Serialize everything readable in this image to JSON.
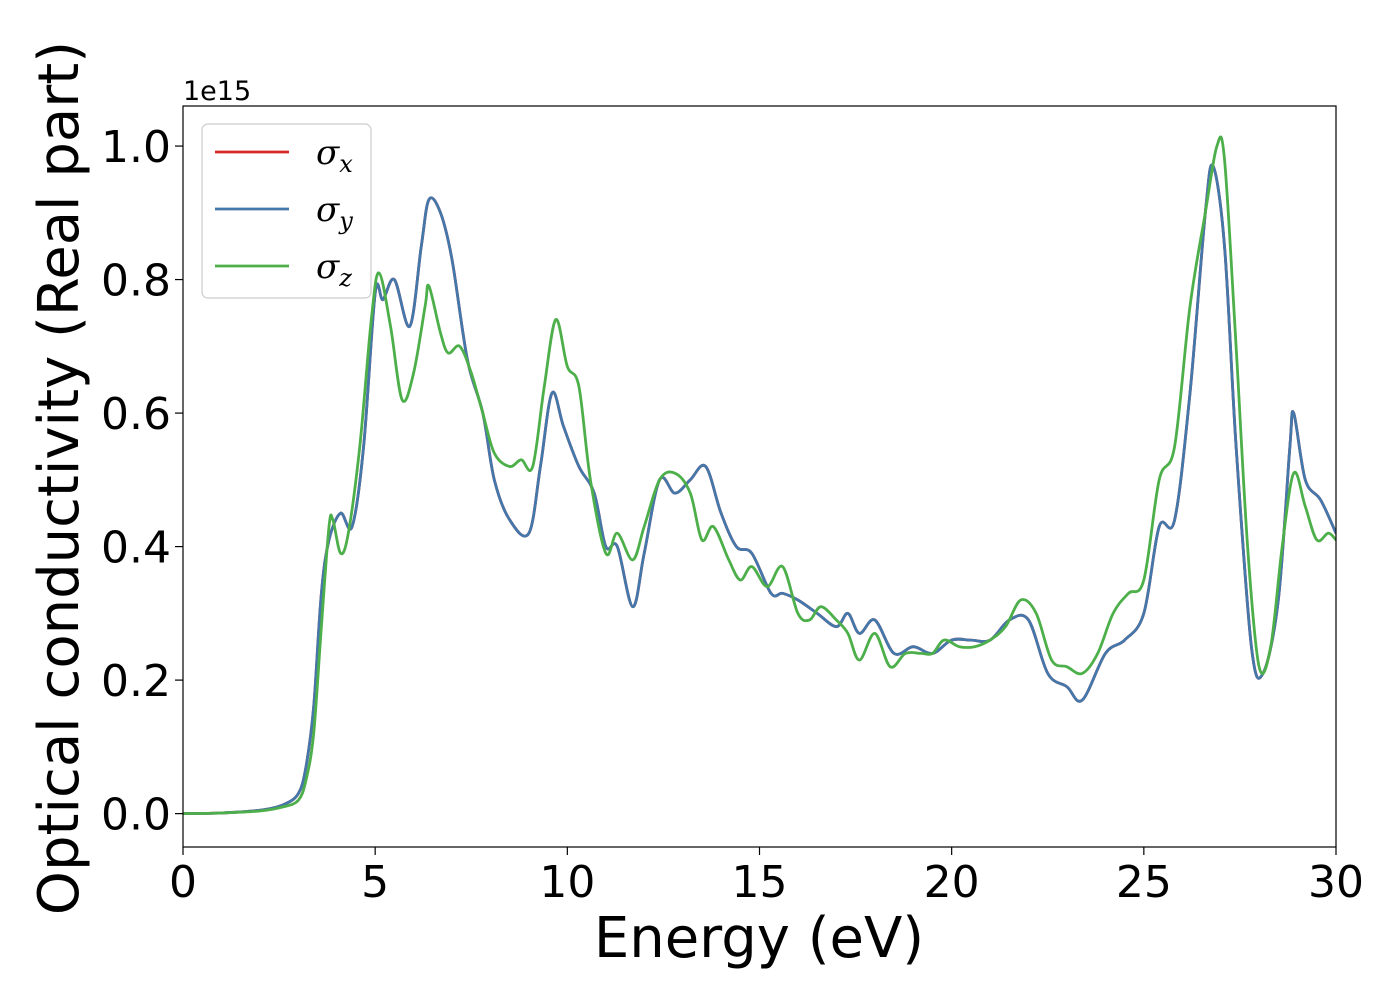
{
  "chart_data": {
    "type": "line",
    "title": "",
    "xlabel": "Energy (eV)",
    "ylabel": "Optical conductivity (Real part)",
    "y_offset_text": "1e15",
    "xlim": [
      0,
      30
    ],
    "ylim": [
      -0.05,
      1.06
    ],
    "x_ticks": [
      "0",
      "5",
      "10",
      "15",
      "20",
      "25",
      "30"
    ],
    "y_ticks": [
      "0.0",
      "0.2",
      "0.4",
      "0.6",
      "0.8",
      "1.0"
    ],
    "grid": false,
    "legend_position": "upper-left",
    "series": [
      {
        "name": "σx",
        "symbol": "σ",
        "subscript": "x",
        "color": "#d62728",
        "points": [
          [
            0,
            0
          ],
          [
            1,
            0.001
          ],
          [
            2,
            0.005
          ],
          [
            2.6,
            0.013
          ],
          [
            3,
            0.03
          ],
          [
            3.2,
            0.07
          ],
          [
            3.4,
            0.16
          ],
          [
            3.6,
            0.33
          ],
          [
            3.8,
            0.41
          ],
          [
            4.1,
            0.45
          ],
          [
            4.4,
            0.43
          ],
          [
            4.7,
            0.55
          ],
          [
            5.0,
            0.78
          ],
          [
            5.2,
            0.77
          ],
          [
            5.5,
            0.8
          ],
          [
            5.9,
            0.73
          ],
          [
            6.2,
            0.85
          ],
          [
            6.4,
            0.92
          ],
          [
            6.7,
            0.9
          ],
          [
            7.0,
            0.83
          ],
          [
            7.4,
            0.68
          ],
          [
            7.8,
            0.6
          ],
          [
            8.1,
            0.5
          ],
          [
            8.5,
            0.44
          ],
          [
            9.0,
            0.42
          ],
          [
            9.3,
            0.52
          ],
          [
            9.6,
            0.63
          ],
          [
            9.9,
            0.58
          ],
          [
            10.3,
            0.52
          ],
          [
            10.7,
            0.48
          ],
          [
            11.0,
            0.4
          ],
          [
            11.3,
            0.4
          ],
          [
            11.7,
            0.31
          ],
          [
            12.0,
            0.39
          ],
          [
            12.4,
            0.5
          ],
          [
            12.8,
            0.48
          ],
          [
            13.2,
            0.5
          ],
          [
            13.6,
            0.52
          ],
          [
            14.0,
            0.45
          ],
          [
            14.4,
            0.4
          ],
          [
            14.8,
            0.39
          ],
          [
            15.3,
            0.33
          ],
          [
            15.6,
            0.33
          ],
          [
            16.0,
            0.32
          ],
          [
            16.5,
            0.3
          ],
          [
            17.0,
            0.28
          ],
          [
            17.3,
            0.3
          ],
          [
            17.6,
            0.27
          ],
          [
            18.0,
            0.29
          ],
          [
            18.5,
            0.24
          ],
          [
            19.0,
            0.25
          ],
          [
            19.5,
            0.24
          ],
          [
            20.0,
            0.26
          ],
          [
            20.5,
            0.26
          ],
          [
            21.0,
            0.26
          ],
          [
            21.5,
            0.29
          ],
          [
            22.0,
            0.29
          ],
          [
            22.5,
            0.21
          ],
          [
            23.0,
            0.19
          ],
          [
            23.4,
            0.17
          ],
          [
            24.0,
            0.24
          ],
          [
            24.5,
            0.26
          ],
          [
            25.0,
            0.3
          ],
          [
            25.4,
            0.43
          ],
          [
            25.8,
            0.44
          ],
          [
            26.2,
            0.63
          ],
          [
            26.6,
            0.9
          ],
          [
            26.8,
            0.97
          ],
          [
            27.1,
            0.85
          ],
          [
            27.4,
            0.55
          ],
          [
            27.8,
            0.25
          ],
          [
            28.1,
            0.21
          ],
          [
            28.5,
            0.32
          ],
          [
            28.8,
            0.55
          ],
          [
            28.9,
            0.6
          ],
          [
            29.2,
            0.5
          ],
          [
            29.6,
            0.47
          ],
          [
            30.0,
            0.42
          ]
        ]
      },
      {
        "name": "σy",
        "symbol": "σ",
        "subscript": "y",
        "color": "#4477aa",
        "points": [
          [
            0,
            0
          ],
          [
            1,
            0.001
          ],
          [
            2,
            0.005
          ],
          [
            2.6,
            0.013
          ],
          [
            3,
            0.03
          ],
          [
            3.2,
            0.07
          ],
          [
            3.4,
            0.16
          ],
          [
            3.6,
            0.33
          ],
          [
            3.8,
            0.41
          ],
          [
            4.1,
            0.45
          ],
          [
            4.4,
            0.43
          ],
          [
            4.7,
            0.55
          ],
          [
            5.0,
            0.78
          ],
          [
            5.2,
            0.77
          ],
          [
            5.5,
            0.8
          ],
          [
            5.9,
            0.73
          ],
          [
            6.2,
            0.85
          ],
          [
            6.4,
            0.92
          ],
          [
            6.7,
            0.9
          ],
          [
            7.0,
            0.83
          ],
          [
            7.4,
            0.68
          ],
          [
            7.8,
            0.6
          ],
          [
            8.1,
            0.5
          ],
          [
            8.5,
            0.44
          ],
          [
            9.0,
            0.42
          ],
          [
            9.3,
            0.52
          ],
          [
            9.6,
            0.63
          ],
          [
            9.9,
            0.58
          ],
          [
            10.3,
            0.52
          ],
          [
            10.7,
            0.48
          ],
          [
            11.0,
            0.4
          ],
          [
            11.3,
            0.4
          ],
          [
            11.7,
            0.31
          ],
          [
            12.0,
            0.39
          ],
          [
            12.4,
            0.5
          ],
          [
            12.8,
            0.48
          ],
          [
            13.2,
            0.5
          ],
          [
            13.6,
            0.52
          ],
          [
            14.0,
            0.45
          ],
          [
            14.4,
            0.4
          ],
          [
            14.8,
            0.39
          ],
          [
            15.3,
            0.33
          ],
          [
            15.6,
            0.33
          ],
          [
            16.0,
            0.32
          ],
          [
            16.5,
            0.3
          ],
          [
            17.0,
            0.28
          ],
          [
            17.3,
            0.3
          ],
          [
            17.6,
            0.27
          ],
          [
            18.0,
            0.29
          ],
          [
            18.5,
            0.24
          ],
          [
            19.0,
            0.25
          ],
          [
            19.5,
            0.24
          ],
          [
            20.0,
            0.26
          ],
          [
            20.5,
            0.26
          ],
          [
            21.0,
            0.26
          ],
          [
            21.5,
            0.29
          ],
          [
            22.0,
            0.29
          ],
          [
            22.5,
            0.21
          ],
          [
            23.0,
            0.19
          ],
          [
            23.4,
            0.17
          ],
          [
            24.0,
            0.24
          ],
          [
            24.5,
            0.26
          ],
          [
            25.0,
            0.3
          ],
          [
            25.4,
            0.43
          ],
          [
            25.8,
            0.44
          ],
          [
            26.2,
            0.63
          ],
          [
            26.6,
            0.9
          ],
          [
            26.8,
            0.97
          ],
          [
            27.1,
            0.85
          ],
          [
            27.4,
            0.55
          ],
          [
            27.8,
            0.25
          ],
          [
            28.1,
            0.21
          ],
          [
            28.5,
            0.32
          ],
          [
            28.8,
            0.55
          ],
          [
            28.9,
            0.6
          ],
          [
            29.2,
            0.5
          ],
          [
            29.6,
            0.47
          ],
          [
            30.0,
            0.42
          ]
        ]
      },
      {
        "name": "σz",
        "symbol": "σ",
        "subscript": "z",
        "color": "#4daf4a",
        "points": [
          [
            0,
            0
          ],
          [
            1,
            0.001
          ],
          [
            2,
            0.004
          ],
          [
            2.6,
            0.01
          ],
          [
            3,
            0.02
          ],
          [
            3.2,
            0.05
          ],
          [
            3.4,
            0.12
          ],
          [
            3.6,
            0.28
          ],
          [
            3.8,
            0.43
          ],
          [
            3.9,
            0.44
          ],
          [
            4.1,
            0.39
          ],
          [
            4.3,
            0.42
          ],
          [
            4.6,
            0.55
          ],
          [
            4.9,
            0.74
          ],
          [
            5.1,
            0.81
          ],
          [
            5.4,
            0.73
          ],
          [
            5.7,
            0.62
          ],
          [
            6.0,
            0.66
          ],
          [
            6.3,
            0.76
          ],
          [
            6.4,
            0.79
          ],
          [
            6.7,
            0.72
          ],
          [
            6.9,
            0.69
          ],
          [
            7.2,
            0.7
          ],
          [
            7.5,
            0.66
          ],
          [
            7.8,
            0.6
          ],
          [
            8.1,
            0.54
          ],
          [
            8.5,
            0.52
          ],
          [
            8.8,
            0.53
          ],
          [
            9.1,
            0.52
          ],
          [
            9.4,
            0.64
          ],
          [
            9.7,
            0.74
          ],
          [
            10.0,
            0.67
          ],
          [
            10.3,
            0.64
          ],
          [
            10.6,
            0.5
          ],
          [
            11.0,
            0.39
          ],
          [
            11.3,
            0.42
          ],
          [
            11.7,
            0.38
          ],
          [
            12.0,
            0.43
          ],
          [
            12.4,
            0.5
          ],
          [
            12.8,
            0.51
          ],
          [
            13.2,
            0.48
          ],
          [
            13.5,
            0.41
          ],
          [
            13.8,
            0.43
          ],
          [
            14.2,
            0.38
          ],
          [
            14.5,
            0.35
          ],
          [
            14.8,
            0.37
          ],
          [
            15.2,
            0.34
          ],
          [
            15.6,
            0.37
          ],
          [
            16.0,
            0.3
          ],
          [
            16.3,
            0.29
          ],
          [
            16.6,
            0.31
          ],
          [
            17.0,
            0.29
          ],
          [
            17.3,
            0.27
          ],
          [
            17.6,
            0.23
          ],
          [
            18.0,
            0.27
          ],
          [
            18.4,
            0.22
          ],
          [
            18.8,
            0.24
          ],
          [
            19.2,
            0.24
          ],
          [
            19.5,
            0.24
          ],
          [
            19.8,
            0.26
          ],
          [
            20.2,
            0.25
          ],
          [
            20.6,
            0.25
          ],
          [
            21.0,
            0.26
          ],
          [
            21.4,
            0.28
          ],
          [
            21.8,
            0.32
          ],
          [
            22.2,
            0.3
          ],
          [
            22.6,
            0.23
          ],
          [
            23.0,
            0.22
          ],
          [
            23.4,
            0.21
          ],
          [
            23.8,
            0.24
          ],
          [
            24.2,
            0.3
          ],
          [
            24.6,
            0.33
          ],
          [
            25.0,
            0.35
          ],
          [
            25.4,
            0.5
          ],
          [
            25.8,
            0.55
          ],
          [
            26.2,
            0.76
          ],
          [
            26.6,
            0.9
          ],
          [
            26.9,
            1.0
          ],
          [
            27.1,
            0.98
          ],
          [
            27.4,
            0.7
          ],
          [
            27.7,
            0.4
          ],
          [
            28.0,
            0.22
          ],
          [
            28.3,
            0.25
          ],
          [
            28.6,
            0.4
          ],
          [
            28.9,
            0.51
          ],
          [
            29.2,
            0.46
          ],
          [
            29.5,
            0.41
          ],
          [
            29.8,
            0.42
          ],
          [
            30.0,
            0.41
          ]
        ]
      }
    ]
  }
}
